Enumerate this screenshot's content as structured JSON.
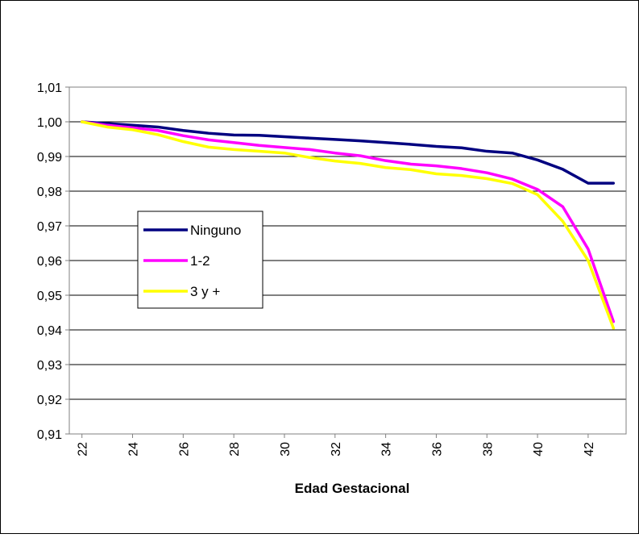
{
  "chart_data": {
    "type": "line",
    "title": "",
    "xlabel": "Edad Gestacional",
    "ylabel": "",
    "x": [
      22,
      23,
      24,
      25,
      26,
      27,
      28,
      29,
      30,
      31,
      32,
      33,
      34,
      35,
      36,
      37,
      38,
      39,
      40,
      41,
      42,
      43
    ],
    "xticks": [
      "22",
      "24",
      "26",
      "28",
      "30",
      "32",
      "34",
      "36",
      "38",
      "40",
      "42"
    ],
    "xlim": [
      21.5,
      43.5
    ],
    "ylim": [
      0.91,
      1.01
    ],
    "yticks": [
      "0,91",
      "0,92",
      "0,93",
      "0,94",
      "0,95",
      "0,96",
      "0,97",
      "0,98",
      "0,99",
      "1,00",
      "1,01"
    ],
    "grid": true,
    "legend_position": "left-middle",
    "series": [
      {
        "name": "Ninguno",
        "color": "#000080",
        "values": [
          1.0,
          0.9995,
          0.999,
          0.9985,
          0.9975,
          0.9967,
          0.9962,
          0.9961,
          0.9957,
          0.9953,
          0.9949,
          0.9945,
          0.994,
          0.9935,
          0.9929,
          0.9925,
          0.9915,
          0.991,
          0.989,
          0.9863,
          0.9823,
          0.9823
        ]
      },
      {
        "name": "1-2",
        "color": "#FF00FF",
        "values": [
          1.0,
          0.999,
          0.9983,
          0.9975,
          0.996,
          0.9948,
          0.994,
          0.9932,
          0.9926,
          0.992,
          0.991,
          0.9902,
          0.9888,
          0.9878,
          0.9873,
          0.9865,
          0.9853,
          0.9835,
          0.9805,
          0.9755,
          0.9633,
          0.9424
        ]
      },
      {
        "name": "3 y +",
        "color": "#FFFF00",
        "values": [
          1.0,
          0.9985,
          0.9977,
          0.9963,
          0.9943,
          0.9927,
          0.992,
          0.9915,
          0.991,
          0.9897,
          0.9887,
          0.988,
          0.9868,
          0.9862,
          0.985,
          0.9845,
          0.9836,
          0.9822,
          0.979,
          0.9713,
          0.96,
          0.9405
        ]
      }
    ]
  }
}
